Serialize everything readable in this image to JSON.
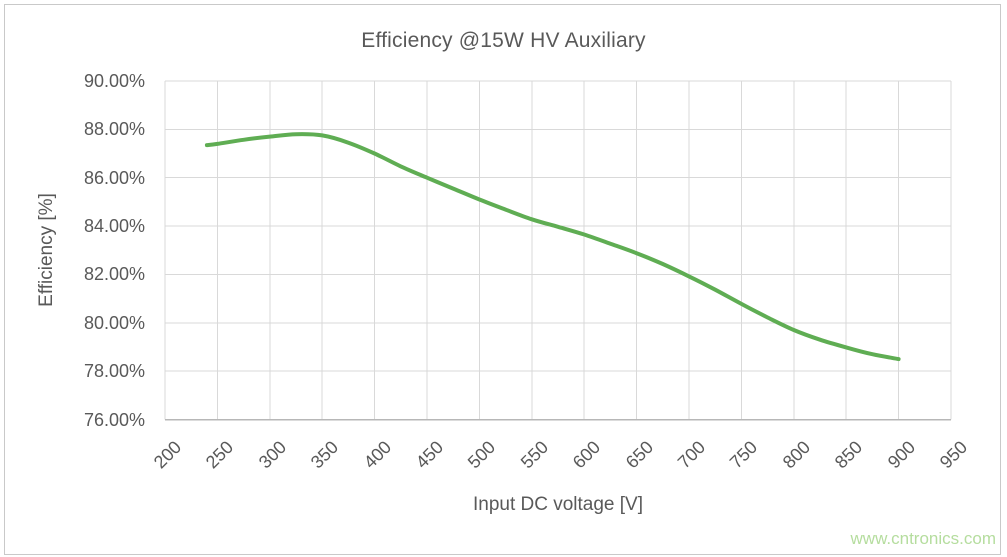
{
  "window": {
    "background": "#ffffff",
    "border_color": "#c9c9c9"
  },
  "chart_data": {
    "type": "line",
    "title": "Efficiency @15W HV Auxiliary",
    "xlabel": "Input DC voltage [V]",
    "ylabel": "Efficiency [%]",
    "xlim": [
      200,
      950
    ],
    "ylim": [
      76,
      90
    ],
    "x_ticks": [
      200,
      250,
      300,
      350,
      400,
      450,
      500,
      550,
      600,
      650,
      700,
      750,
      800,
      850,
      900,
      950
    ],
    "y_ticks": [
      90,
      88,
      86,
      84,
      82,
      80,
      78,
      76
    ],
    "y_tick_labels": [
      "90.00%",
      "88.00%",
      "86.00%",
      "84.00%",
      "82.00%",
      "80.00%",
      "78.00%",
      "76.00%"
    ],
    "grid": true,
    "legend_position": "none",
    "text_color": "#595959",
    "grid_color": "#d9d9d9",
    "axis_line_color": "#b7b7b7",
    "series": [
      {
        "name": "Efficiency",
        "color": "#5fad53",
        "line_width": 4,
        "points": [
          [
            240,
            87.35
          ],
          [
            250,
            87.4
          ],
          [
            275,
            87.57
          ],
          [
            300,
            87.7
          ],
          [
            325,
            87.8
          ],
          [
            350,
            87.75
          ],
          [
            375,
            87.45
          ],
          [
            400,
            87.0
          ],
          [
            425,
            86.47
          ],
          [
            450,
            86.0
          ],
          [
            475,
            85.55
          ],
          [
            500,
            85.1
          ],
          [
            525,
            84.68
          ],
          [
            550,
            84.28
          ],
          [
            575,
            83.97
          ],
          [
            600,
            83.65
          ],
          [
            625,
            83.27
          ],
          [
            650,
            82.88
          ],
          [
            675,
            82.43
          ],
          [
            700,
            81.92
          ],
          [
            725,
            81.37
          ],
          [
            750,
            80.78
          ],
          [
            775,
            80.22
          ],
          [
            800,
            79.7
          ],
          [
            825,
            79.3
          ],
          [
            850,
            78.98
          ],
          [
            875,
            78.7
          ],
          [
            900,
            78.5
          ]
        ]
      }
    ]
  },
  "watermark": {
    "text": "www.cntronics.com",
    "color": "#b5dd9e"
  }
}
